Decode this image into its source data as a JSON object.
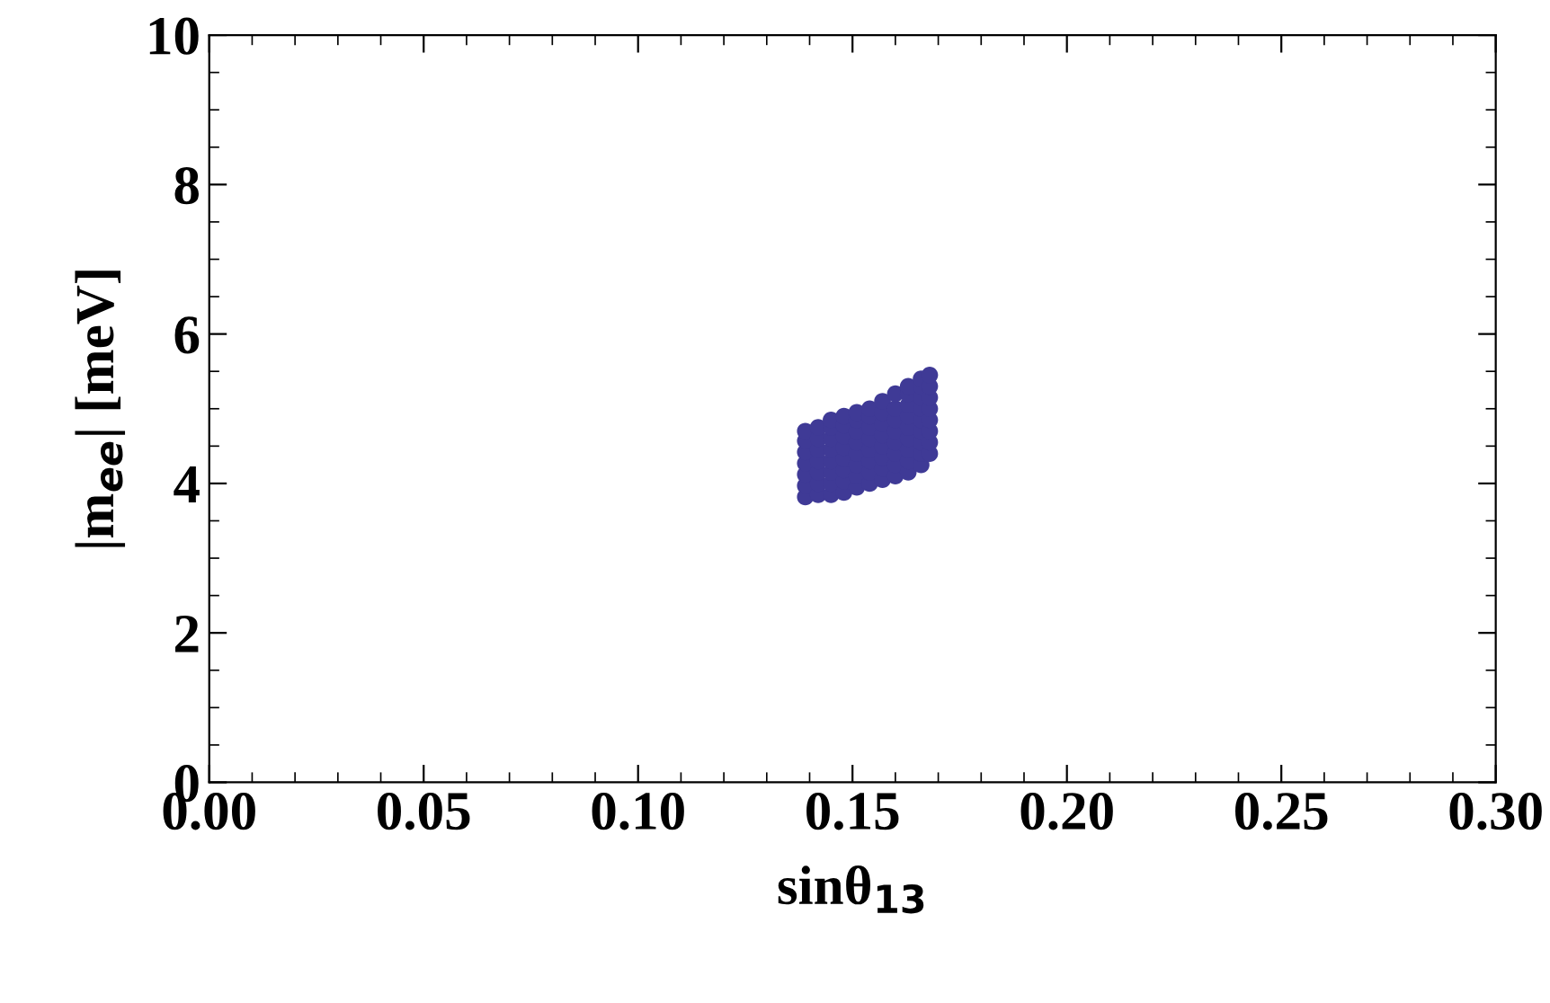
{
  "chart_data": {
    "type": "scatter",
    "xlabel": "sinθ$_{13}$",
    "ylabel": "|m$_{ee}$| [meV]",
    "xlim": [
      0,
      0.3
    ],
    "xticks": [
      {
        "value": 0,
        "label": "0.00"
      },
      0.05,
      {
        "value": 0.1,
        "label": "0.10"
      },
      0.15,
      {
        "value": 0.2,
        "label": "0.20"
      },
      0.25,
      {
        "value": 0.3,
        "label": "0.30"
      }
    ],
    "ylim": [
      0,
      10
    ],
    "yticks": [
      0,
      2,
      4,
      6,
      8,
      10
    ],
    "grid": false,
    "marker": "circle",
    "series": [
      {
        "color": "#3f3a96",
        "x": [
          0.139,
          0.139,
          0.139,
          0.139,
          0.139,
          0.139,
          0.139,
          0.142,
          0.142,
          0.142,
          0.142,
          0.142,
          0.142,
          0.142,
          0.145,
          0.145,
          0.145,
          0.145,
          0.145,
          0.145,
          0.145,
          0.145,
          0.148,
          0.148,
          0.148,
          0.148,
          0.148,
          0.148,
          0.148,
          0.148,
          0.151,
          0.151,
          0.151,
          0.151,
          0.151,
          0.151,
          0.151,
          0.151,
          0.154,
          0.154,
          0.154,
          0.154,
          0.154,
          0.154,
          0.154,
          0.154,
          0.157,
          0.157,
          0.157,
          0.157,
          0.157,
          0.157,
          0.157,
          0.157,
          0.16,
          0.16,
          0.16,
          0.16,
          0.16,
          0.16,
          0.16,
          0.16,
          0.163,
          0.163,
          0.163,
          0.163,
          0.163,
          0.163,
          0.163,
          0.163,
          0.163,
          0.166,
          0.166,
          0.166,
          0.166,
          0.166,
          0.166,
          0.166,
          0.166,
          0.166,
          0.168,
          0.168,
          0.168,
          0.168,
          0.168,
          0.168,
          0.168,
          0.168
        ],
        "values": [
          3.82,
          3.97,
          4.12,
          4.27,
          4.42,
          4.57,
          4.7,
          3.85,
          4.0,
          4.15,
          4.3,
          4.45,
          4.6,
          4.75,
          3.85,
          4.0,
          4.15,
          4.3,
          4.45,
          4.6,
          4.75,
          4.85,
          3.88,
          4.03,
          4.18,
          4.33,
          4.48,
          4.63,
          4.78,
          4.9,
          3.95,
          4.1,
          4.25,
          4.4,
          4.55,
          4.7,
          4.85,
          4.95,
          4.0,
          4.15,
          4.3,
          4.45,
          4.6,
          4.75,
          4.9,
          5.0,
          4.05,
          4.2,
          4.35,
          4.5,
          4.65,
          4.8,
          4.95,
          5.1,
          4.1,
          4.25,
          4.4,
          4.55,
          4.7,
          4.85,
          5.0,
          5.2,
          4.15,
          4.3,
          4.45,
          4.6,
          4.75,
          4.9,
          5.05,
          5.2,
          5.3,
          4.25,
          4.4,
          4.55,
          4.7,
          4.85,
          5.0,
          5.15,
          5.3,
          5.4,
          4.4,
          4.55,
          4.7,
          4.85,
          5.0,
          5.15,
          5.3,
          5.45
        ]
      }
    ]
  }
}
